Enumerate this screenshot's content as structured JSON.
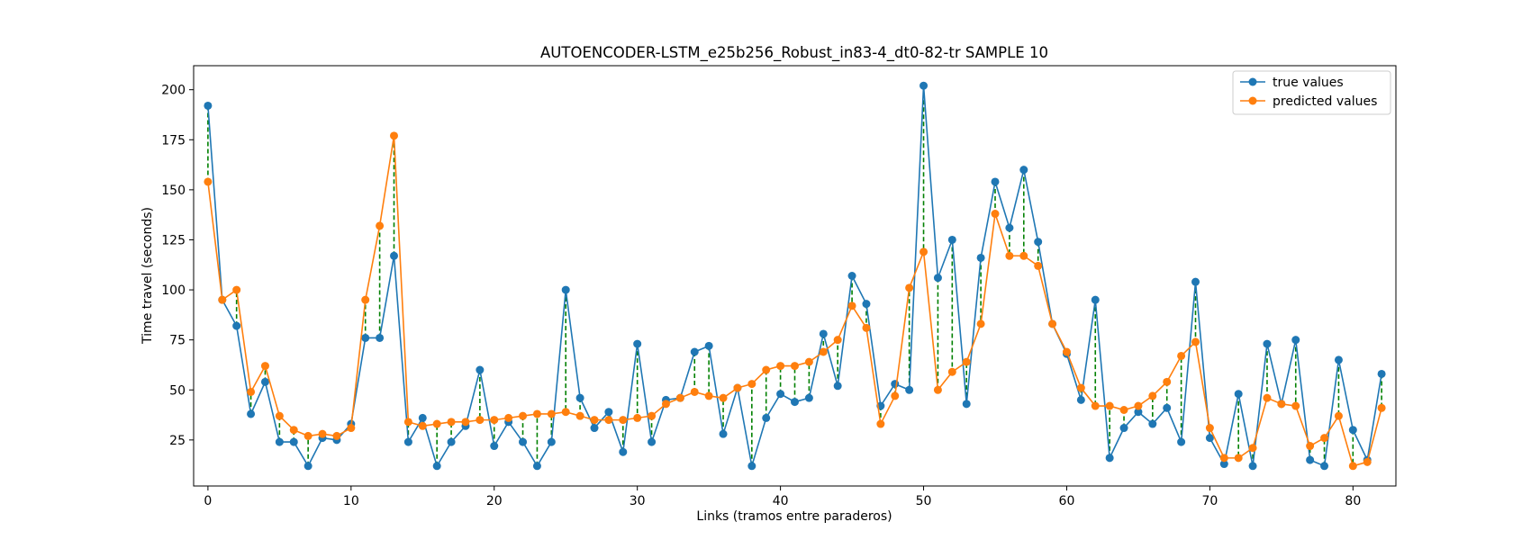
{
  "chart_data": {
    "type": "line",
    "title": "AUTOENCODER-LSTM_e25b256_Robust_in83-4_dt0-82-tr SAMPLE 10",
    "xlabel": "Links (tramos entre paraderos)",
    "ylabel": "Time travel (seconds)",
    "xlim": [
      -1,
      83
    ],
    "ylim": [
      2,
      212
    ],
    "xticks": [
      0,
      10,
      20,
      30,
      40,
      50,
      60,
      70,
      80
    ],
    "yticks": [
      25,
      50,
      75,
      100,
      125,
      150,
      175,
      200
    ],
    "grid": false,
    "legend_position": "top-right",
    "error_lines": {
      "color": "#008000",
      "style": "dashed"
    },
    "x": [
      0,
      1,
      2,
      3,
      4,
      5,
      6,
      7,
      8,
      9,
      10,
      11,
      12,
      13,
      14,
      15,
      16,
      17,
      18,
      19,
      20,
      21,
      22,
      23,
      24,
      25,
      26,
      27,
      28,
      29,
      30,
      31,
      32,
      33,
      34,
      35,
      36,
      37,
      38,
      39,
      40,
      41,
      42,
      43,
      44,
      45,
      46,
      47,
      48,
      49,
      50,
      51,
      52,
      53,
      54,
      55,
      56,
      57,
      58,
      59,
      60,
      61,
      62,
      63,
      64,
      65,
      66,
      67,
      68,
      69,
      70,
      71,
      72,
      73,
      74,
      75,
      76,
      77,
      78,
      79,
      80,
      81,
      82
    ],
    "series": [
      {
        "name": "true values",
        "color": "#1f77b4",
        "values": [
          192,
          95,
          82,
          38,
          54,
          24,
          24,
          12,
          26,
          25,
          33,
          76,
          76,
          117,
          24,
          36,
          12,
          24,
          32,
          60,
          22,
          34,
          24,
          12,
          24,
          100,
          46,
          31,
          39,
          19,
          73,
          24,
          45,
          46,
          69,
          72,
          28,
          51,
          12,
          36,
          48,
          44,
          46,
          78,
          52,
          107,
          93,
          42,
          53,
          50,
          202,
          106,
          125,
          43,
          116,
          154,
          131,
          160,
          124,
          83,
          68,
          45,
          95,
          16,
          31,
          39,
          33,
          41,
          24,
          104,
          26,
          13,
          48,
          12,
          73,
          43,
          75,
          15,
          12,
          65,
          30,
          15,
          58
        ]
      },
      {
        "name": "predicted values",
        "color": "#ff7f0e",
        "values": [
          154,
          95,
          100,
          49,
          62,
          37,
          30,
          27,
          28,
          27,
          31,
          95,
          132,
          177,
          34,
          32,
          33,
          34,
          34,
          35,
          35,
          36,
          37,
          38,
          38,
          39,
          37,
          35,
          35,
          35,
          36,
          37,
          43,
          46,
          49,
          47,
          46,
          51,
          53,
          60,
          62,
          62,
          64,
          69,
          75,
          92,
          81,
          33,
          47,
          101,
          119,
          50,
          59,
          64,
          83,
          138,
          117,
          117,
          112,
          83,
          69,
          51,
          42,
          42,
          40,
          42,
          47,
          54,
          67,
          74,
          31,
          16,
          16,
          21,
          46,
          43,
          42,
          22,
          26,
          37,
          12,
          14,
          41
        ]
      }
    ]
  }
}
